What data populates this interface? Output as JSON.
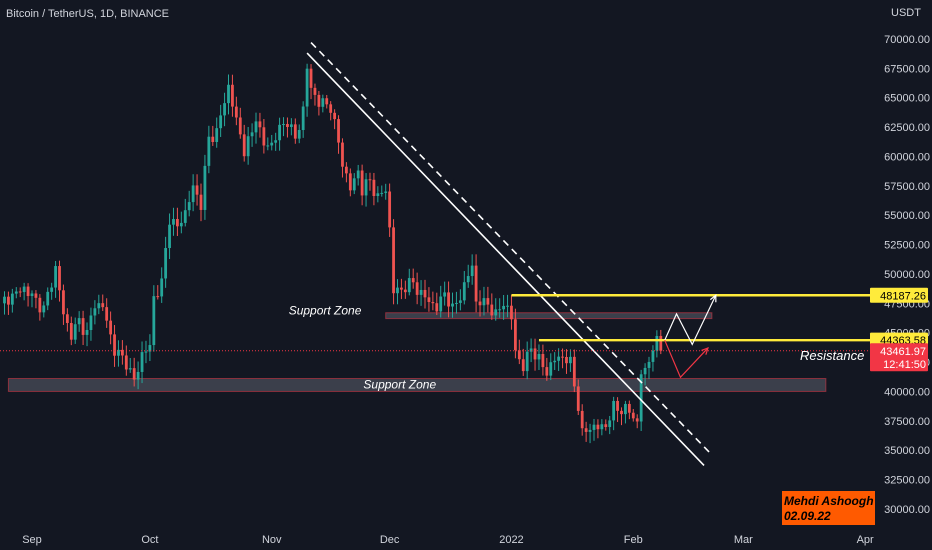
{
  "chart_data": {
    "type": "candlestick",
    "title": "Bitcoin / TetherUS, 1D, BINANCE",
    "currency": "USDT",
    "y_ticks": [
      30000,
      32500,
      35000,
      37500,
      40000,
      42500,
      45000,
      47500,
      50000,
      52500,
      55000,
      57500,
      60000,
      62500,
      65000,
      67500,
      70000
    ],
    "y_tick_labels": [
      "30000.00",
      "32500.00",
      "35000.00",
      "37500.00",
      "40000.00",
      "42500.00",
      "45000.00",
      "47500.00",
      "50000.00",
      "52500.00",
      "55000.00",
      "57500.00",
      "60000.00",
      "62500.00",
      "65000.00",
      "67500.00",
      "70000.00"
    ],
    "ylim": [
      29000,
      72000
    ],
    "x_labels": [
      {
        "label": "Sep",
        "day": 0
      },
      {
        "label": "Oct",
        "day": 30
      },
      {
        "label": "Nov",
        "day": 61
      },
      {
        "label": "Dec",
        "day": 91
      },
      {
        "label": "2022",
        "day": 122
      },
      {
        "label": "Feb",
        "day": 153
      },
      {
        "label": "Mar",
        "day": 181
      },
      {
        "label": "Apr",
        "day": 212
      }
    ],
    "xlim": [
      -8,
      215
    ],
    "price_path": [
      [
        -8,
        47500
      ],
      [
        -2,
        48800
      ],
      [
        3,
        47000
      ],
      [
        6,
        50500
      ],
      [
        8,
        46600
      ],
      [
        10,
        44800
      ],
      [
        12,
        46000
      ],
      [
        14,
        44900
      ],
      [
        16,
        47500
      ],
      [
        18,
        47200
      ],
      [
        21,
        43500
      ],
      [
        24,
        42500
      ],
      [
        26,
        40800
      ],
      [
        28,
        43200
      ],
      [
        30,
        43800
      ],
      [
        31,
        48000
      ],
      [
        33,
        49200
      ],
      [
        35,
        54800
      ],
      [
        37,
        53900
      ],
      [
        39,
        55300
      ],
      [
        41,
        57300
      ],
      [
        43,
        56000
      ],
      [
        45,
        61500
      ],
      [
        47,
        62100
      ],
      [
        50,
        66000
      ],
      [
        52,
        63000
      ],
      [
        54,
        60600
      ],
      [
        56,
        61900
      ],
      [
        57,
        63500
      ],
      [
        59,
        60900
      ],
      [
        61,
        61100
      ],
      [
        63,
        62300
      ],
      [
        65,
        63100
      ],
      [
        67,
        61400
      ],
      [
        69,
        64000
      ],
      [
        70,
        67500
      ],
      [
        71,
        65800
      ],
      [
        73,
        64600
      ],
      [
        76,
        64300
      ],
      [
        79,
        59500
      ],
      [
        81,
        57200
      ],
      [
        83,
        58800
      ],
      [
        84,
        57100
      ],
      [
        86,
        58000
      ],
      [
        88,
        56400
      ],
      [
        90,
        57300
      ],
      [
        91,
        53800
      ],
      [
        92,
        48500
      ],
      [
        94,
        48700
      ],
      [
        97,
        49300
      ],
      [
        99,
        48200
      ],
      [
        101,
        47800
      ],
      [
        103,
        47000
      ],
      [
        105,
        48500
      ],
      [
        107,
        46900
      ],
      [
        110,
        48900
      ],
      [
        112,
        50800
      ],
      [
        113,
        47600
      ],
      [
        116,
        47500
      ],
      [
        118,
        46400
      ],
      [
        120,
        47700
      ],
      [
        122,
        46200
      ],
      [
        123,
        43500
      ],
      [
        125,
        42000
      ],
      [
        127,
        43800
      ],
      [
        129,
        42600
      ],
      [
        131,
        41700
      ],
      [
        133,
        42700
      ],
      [
        135,
        43000
      ],
      [
        137,
        42400
      ],
      [
        139,
        38800
      ],
      [
        140,
        36300
      ],
      [
        142,
        37000
      ],
      [
        144,
        36900
      ],
      [
        146,
        37100
      ],
      [
        148,
        38600
      ],
      [
        150,
        38500
      ],
      [
        152,
        38300
      ],
      [
        153,
        37900
      ],
      [
        154,
        37300
      ],
      [
        155,
        41600
      ],
      [
        156,
        41700
      ],
      [
        157,
        42700
      ],
      [
        158,
        43800
      ],
      [
        159,
        44100
      ],
      [
        160,
        43462
      ]
    ],
    "trendlines": [
      {
        "style": "solid",
        "color": "#ffffff",
        "from": [
          70,
          68800
        ],
        "to": [
          171,
          33700
        ]
      },
      {
        "style": "dashed",
        "color": "#ffffff",
        "from": [
          71,
          69700
        ],
        "to": [
          173,
          34600
        ]
      }
    ],
    "horizontal_lines": [
      {
        "value": 48187.26,
        "label": "48187.26",
        "color": "#ffeb3b",
        "from_day": 122
      },
      {
        "value": 44363.58,
        "label": "44363.58",
        "color": "#ffeb3b",
        "from_day": 129
      }
    ],
    "zones": [
      {
        "label": "Support Zone",
        "from_day": 90,
        "to_day": 173,
        "low": 46200,
        "high": 46700
      },
      {
        "label": "Support Zone",
        "from_day": -6,
        "to_day": 202,
        "low": 40000,
        "high": 41100
      }
    ],
    "annotations": [
      {
        "text": "Resistance"
      },
      {
        "text": "Mehdi Ashoogh"
      },
      {
        "text": "02.09.22"
      }
    ],
    "scenario_paths": [
      {
        "color": "#ffffff",
        "points": [
          [
            161,
            44363
          ],
          [
            164,
            46600
          ],
          [
            168,
            44000
          ],
          [
            174,
            48187
          ]
        ]
      },
      {
        "color": "#f23645",
        "points": [
          [
            161,
            44363
          ],
          [
            165,
            41200
          ],
          [
            172,
            43700
          ]
        ]
      }
    ],
    "last_price": {
      "value": 43461.97,
      "label": "43461.97",
      "countdown": "12:41:50",
      "color": "#f23645"
    },
    "colors": {
      "up": "#26a69a",
      "down": "#ef5350",
      "background": "#131722",
      "axis_text": "#d1d4dc",
      "zone": "#4a4e59",
      "signature_bg": "#ff5a00"
    }
  }
}
